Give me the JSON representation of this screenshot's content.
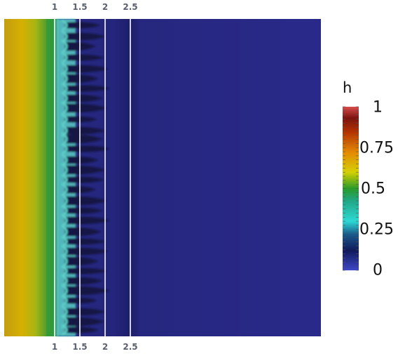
{
  "figure": {
    "top_axis_ticks": [
      "1",
      "1.5",
      "2",
      "2.5"
    ],
    "bottom_axis_ticks": [
      "1",
      "1.5",
      "2",
      "2.5"
    ]
  },
  "colorbar": {
    "title": "h",
    "labels": [
      "1",
      "0.75",
      "0.5",
      "0.25",
      "0"
    ],
    "colors": {
      "low": "#3f47c9",
      "dark_blue": "#1a1766",
      "cyan": "#2fd9d4",
      "green": "#27a327",
      "yellow": "#d6d000",
      "orange": "#e07b00",
      "dark_red": "#7a1410",
      "high": "#d64a4a"
    }
  },
  "field_colors": {
    "background_blue": "#27287f",
    "sheet_yellow": "#c9a515",
    "front_green": "#2c9a3a",
    "finger_cyan": "#5bcfc6",
    "finger_dark": "#151845",
    "reference_line": "#ffffff"
  }
}
